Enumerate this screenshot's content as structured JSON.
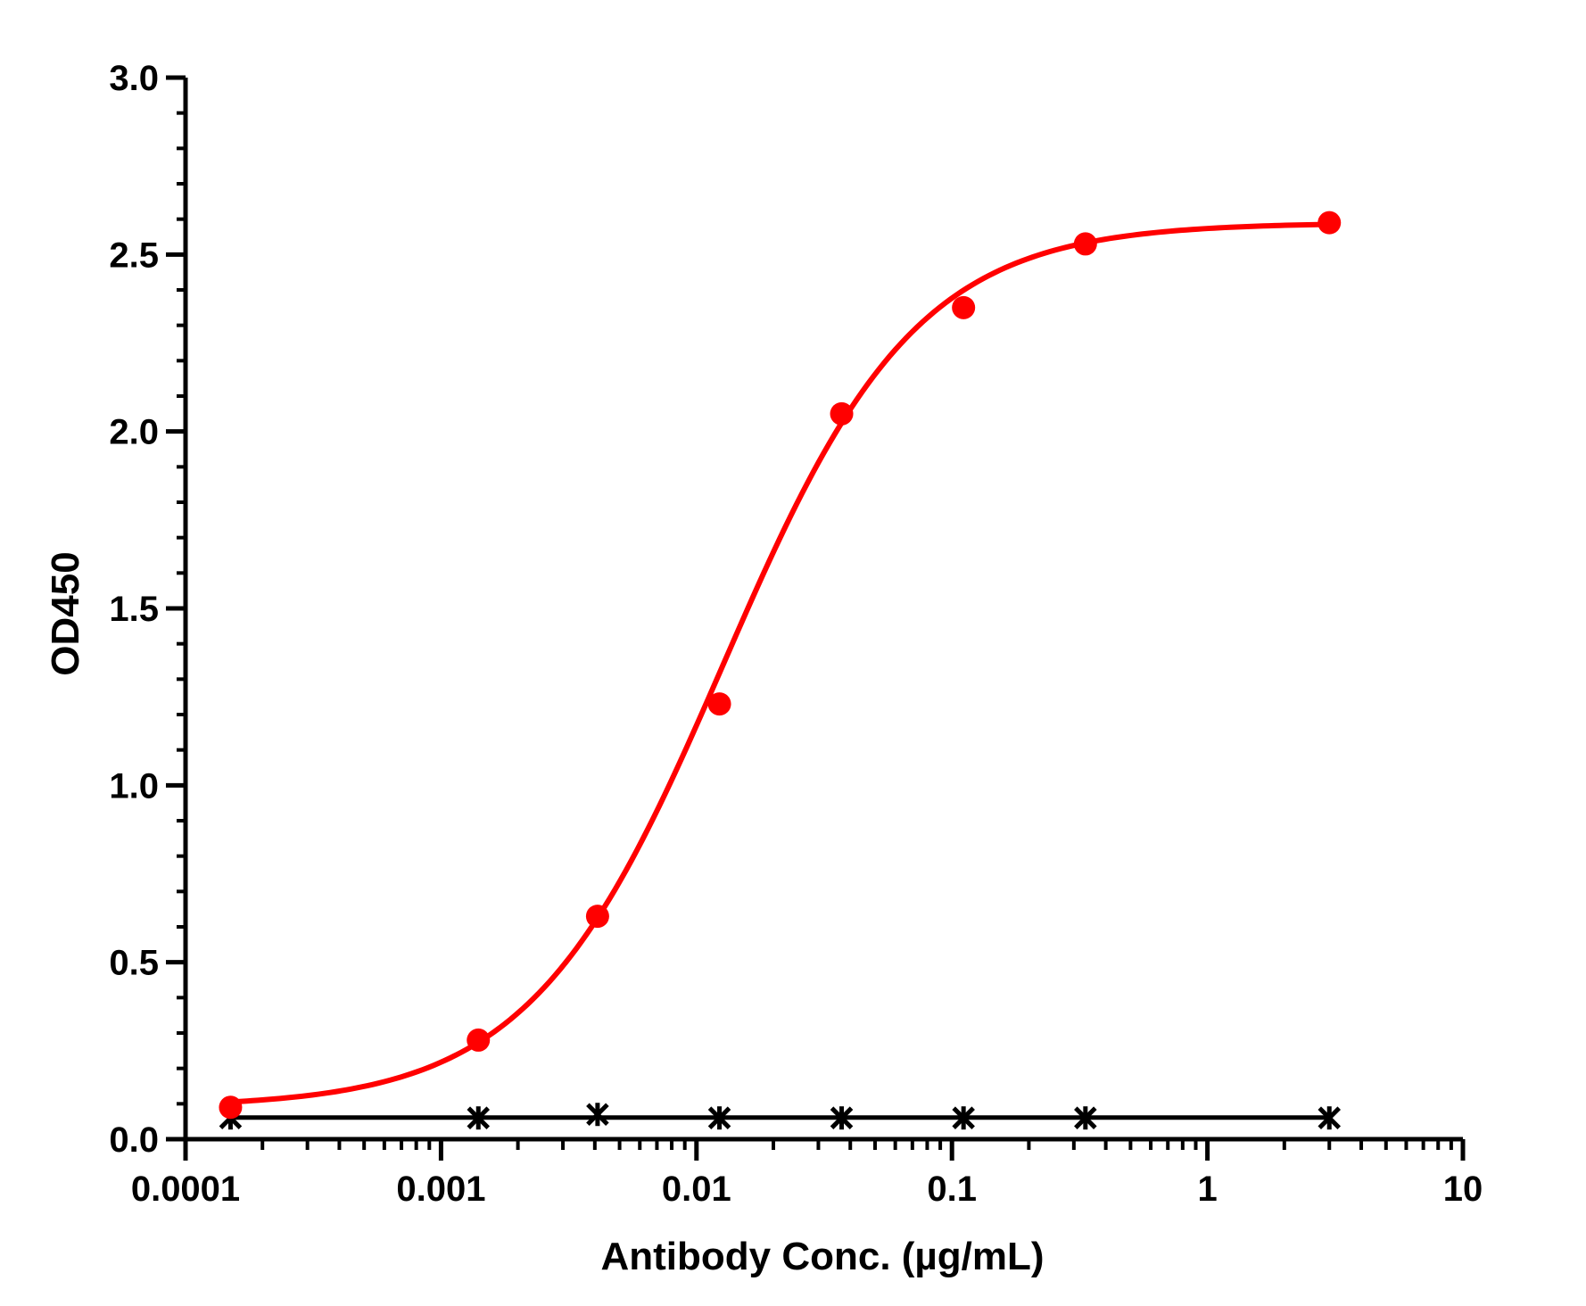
{
  "chart_data": {
    "type": "scatter",
    "title": "",
    "xlabel": "Antibody Conc. (µg/mL)",
    "ylabel": "OD450",
    "x_scale": "log",
    "xlim": [
      0.0001,
      10
    ],
    "ylim": [
      0.0,
      3.0
    ],
    "x_ticks": [
      "0.0001",
      "0.001",
      "0.01",
      "0.1",
      "1",
      "10"
    ],
    "y_ticks": [
      "0.0",
      "0.5",
      "1.0",
      "1.5",
      "2.0",
      "2.5",
      "3.0"
    ],
    "grid": false,
    "legend": "none",
    "series": [
      {
        "marker": "circle",
        "color": "#ff0000",
        "fit": "four-parameter logistic",
        "x": [
          0.00015,
          0.0014,
          0.0041,
          0.0123,
          0.037,
          0.111,
          0.333,
          3.0
        ],
        "y": [
          0.09,
          0.28,
          0.63,
          1.23,
          2.05,
          2.35,
          2.53,
          2.59
        ]
      },
      {
        "marker": "asterisk",
        "color": "#000000",
        "fit": "flat line",
        "x": [
          0.00015,
          0.0014,
          0.0041,
          0.0123,
          0.037,
          0.111,
          0.333,
          3.0
        ],
        "y": [
          0.06,
          0.06,
          0.07,
          0.06,
          0.06,
          0.06,
          0.06,
          0.06
        ]
      }
    ]
  }
}
